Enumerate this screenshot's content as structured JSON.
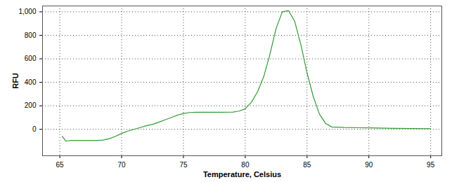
{
  "chart_data": {
    "type": "line",
    "x_label": "Temperature, Celsius",
    "y_label": "RFU",
    "color": "#339933",
    "grid": true,
    "xlim": [
      63.6,
      95.9
    ],
    "ylim": [
      -225,
      1050
    ],
    "xticks": [
      65,
      70,
      75,
      80,
      85,
      90,
      95
    ],
    "yticks": [
      0,
      200,
      400,
      600,
      800,
      1000
    ],
    "x": [
      65.2,
      65.5,
      66,
      67,
      68,
      68.5,
      69,
      69.5,
      70,
      70.5,
      71,
      71.5,
      72,
      72.5,
      73,
      73.5,
      74,
      74.5,
      75,
      75.5,
      76,
      77,
      78,
      79,
      79.5,
      80,
      80.5,
      81,
      81.5,
      82,
      82.5,
      83,
      83.5,
      84,
      84.5,
      85,
      85.5,
      86,
      86.5,
      87,
      88,
      90,
      92,
      95
    ],
    "values": [
      -60,
      -100,
      -95,
      -95,
      -95,
      -92,
      -80,
      -60,
      -35,
      -15,
      0,
      15,
      30,
      42,
      60,
      80,
      100,
      120,
      135,
      143,
      145,
      145,
      145,
      147,
      155,
      175,
      230,
      320,
      450,
      640,
      860,
      1000,
      1010,
      920,
      720,
      480,
      280,
      130,
      50,
      20,
      15,
      12,
      8,
      5
    ]
  }
}
